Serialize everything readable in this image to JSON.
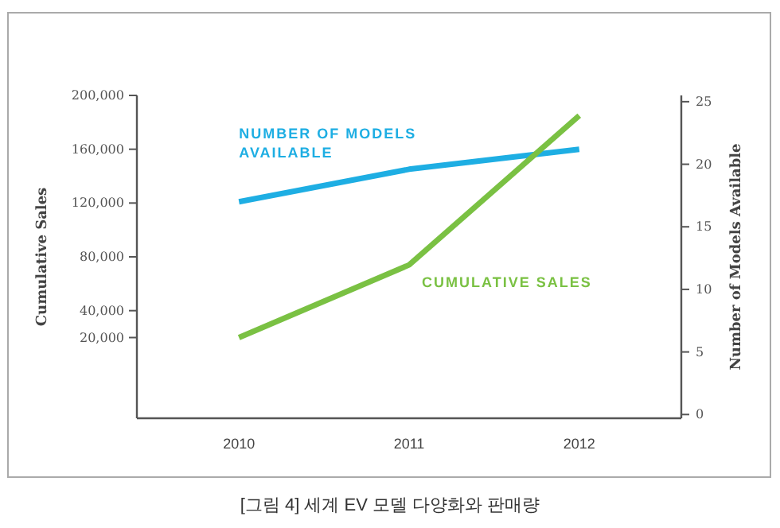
{
  "chart_data": {
    "type": "line",
    "categories": [
      "2010",
      "2011",
      "2012"
    ],
    "series": [
      {
        "name": "NUMBER OF MODELS AVAILABLE",
        "color": "#1eaee3",
        "axis": "y2",
        "values": [
          17,
          19.6,
          21.2
        ]
      },
      {
        "name": "CUMULATIVE SALES",
        "color": "#7ac143",
        "values": [
          20000,
          74000,
          185000
        ]
      }
    ],
    "ylabel": "Cumulative Sales",
    "y2label": "Number of Models Available",
    "ylim": [
      -40000,
      200000
    ],
    "yticks": [
      {
        "value": 20000,
        "label": "20,000"
      },
      {
        "value": 40000,
        "label": "40,000"
      },
      {
        "value": 80000,
        "label": "80,000"
      },
      {
        "value": 120000,
        "label": "120,000"
      },
      {
        "value": 160000,
        "label": "160,000"
      },
      {
        "value": 200000,
        "label": "200,000"
      }
    ],
    "y2lim": [
      -0.3,
      25.5
    ],
    "y2ticks": [
      0,
      5,
      10,
      15,
      20,
      25
    ],
    "grid": false,
    "marker": "none",
    "line_style": "solid",
    "annotations": [
      "[그림 4] 세계 EV 모델 다양화와 판매량"
    ]
  }
}
